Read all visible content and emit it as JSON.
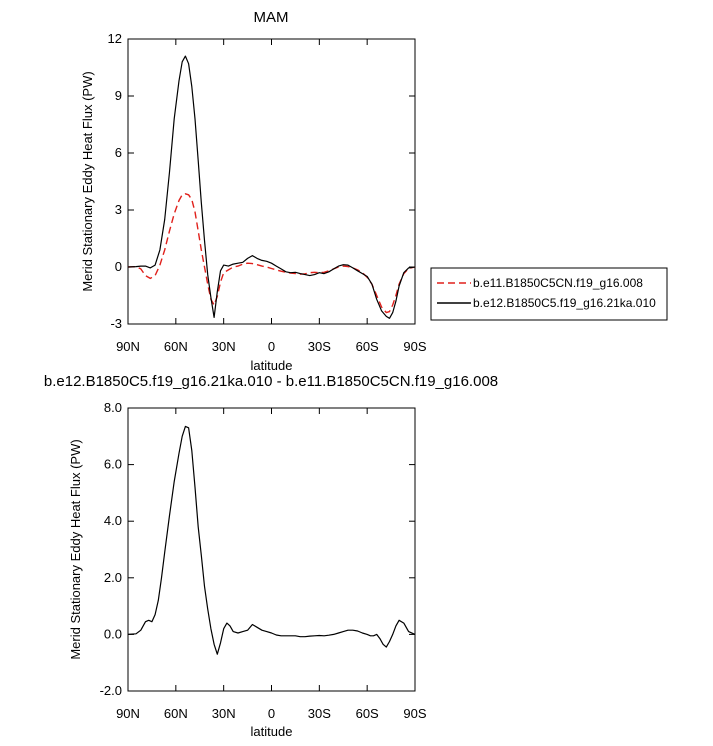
{
  "chart_data": [
    {
      "type": "line",
      "title": "MAM",
      "xlabel": "latitude",
      "ylabel": "Merid Stationary Eddy Heat Flux (PW)",
      "xlim": [
        90,
        -90
      ],
      "ylim": [
        -3,
        12
      ],
      "x_ticks": [
        90,
        60,
        30,
        0,
        -30,
        -60,
        -90
      ],
      "x_tick_labels": [
        "90N",
        "60N",
        "30N",
        "0",
        "30S",
        "60S",
        "90S"
      ],
      "y_ticks": [
        -3,
        0,
        3,
        6,
        9,
        12
      ],
      "y_tick_labels": [
        "-3",
        "0",
        "3",
        "6",
        "9",
        "12"
      ],
      "grid": false,
      "legend": "right",
      "series": [
        {
          "name": "b.e11.B1850C5CN.f19_g16.008",
          "color": "#e0201b",
          "dash": "dashed",
          "x": [
            90,
            85,
            82,
            79,
            76,
            73,
            70,
            67,
            64,
            61,
            58,
            56,
            54,
            52,
            50,
            48,
            46,
            44,
            42,
            40,
            38,
            36,
            34,
            32,
            30,
            27,
            24,
            21,
            18,
            15,
            12,
            9,
            6,
            3,
            0,
            -3,
            -6,
            -9,
            -12,
            -15,
            -18,
            -21,
            -24,
            -27,
            -30,
            -33,
            -36,
            -39,
            -42,
            -45,
            -48,
            -51,
            -54,
            -57,
            -60,
            -63,
            -66,
            -69,
            -72,
            -74,
            -76,
            -78,
            -80,
            -83,
            -86,
            -90
          ],
          "values": [
            0.0,
            0.02,
            -0.1,
            -0.45,
            -0.6,
            -0.45,
            0.1,
            0.9,
            1.9,
            2.8,
            3.5,
            3.8,
            3.85,
            3.8,
            3.55,
            2.9,
            1.9,
            0.9,
            0.0,
            -0.9,
            -1.7,
            -2.0,
            -1.55,
            -0.8,
            -0.3,
            -0.15,
            0.0,
            0.05,
            0.15,
            0.2,
            0.18,
            0.12,
            0.05,
            0.0,
            -0.08,
            -0.15,
            -0.22,
            -0.28,
            -0.32,
            -0.35,
            -0.38,
            -0.36,
            -0.3,
            -0.28,
            -0.3,
            -0.28,
            -0.2,
            -0.1,
            0.0,
            0.05,
            0.02,
            -0.05,
            -0.15,
            -0.3,
            -0.55,
            -0.9,
            -1.5,
            -2.1,
            -2.4,
            -2.35,
            -2.0,
            -1.5,
            -0.9,
            -0.35,
            -0.08,
            0.0
          ]
        },
        {
          "name": "b.e12.B1850C5.f19_g16.21ka.010",
          "color": "#000000",
          "dash": "solid",
          "x": [
            90,
            85,
            82,
            79,
            76,
            73,
            70,
            67,
            64,
            61,
            58,
            56,
            54,
            52,
            50,
            48,
            46,
            44,
            42,
            40,
            38,
            36,
            34,
            32,
            30,
            27,
            24,
            21,
            18,
            15,
            12,
            9,
            6,
            3,
            0,
            -3,
            -6,
            -9,
            -12,
            -15,
            -18,
            -21,
            -24,
            -27,
            -30,
            -33,
            -36,
            -39,
            -42,
            -45,
            -48,
            -51,
            -54,
            -57,
            -60,
            -63,
            -66,
            -69,
            -72,
            -74,
            -76,
            -78,
            -80,
            -83,
            -86,
            -90
          ],
          "values": [
            0.0,
            0.02,
            0.05,
            0.05,
            -0.05,
            0.1,
            0.9,
            2.5,
            5.0,
            7.8,
            9.8,
            10.8,
            11.1,
            10.7,
            9.5,
            7.8,
            5.6,
            3.4,
            1.4,
            -0.4,
            -1.6,
            -2.65,
            -1.3,
            -0.2,
            0.1,
            0.05,
            0.15,
            0.2,
            0.25,
            0.45,
            0.6,
            0.45,
            0.35,
            0.3,
            0.2,
            0.05,
            -0.1,
            -0.25,
            -0.3,
            -0.28,
            -0.35,
            -0.4,
            -0.45,
            -0.4,
            -0.3,
            -0.35,
            -0.25,
            -0.1,
            0.05,
            0.12,
            0.1,
            -0.05,
            -0.2,
            -0.35,
            -0.5,
            -0.9,
            -1.7,
            -2.3,
            -2.6,
            -2.7,
            -2.4,
            -1.8,
            -1.0,
            -0.3,
            -0.05,
            0.0
          ]
        }
      ]
    },
    {
      "type": "line",
      "title": "b.e12.B1850C5.f19_g16.21ka.010 - b.e11.B1850C5CN.f19_g16.008",
      "xlabel": "latitude",
      "ylabel": "Merid Stationary Eddy Heat Flux (PW)",
      "xlim": [
        90,
        -90
      ],
      "ylim": [
        -2,
        8
      ],
      "x_ticks": [
        90,
        60,
        30,
        0,
        -30,
        -60,
        -90
      ],
      "x_tick_labels": [
        "90N",
        "60N",
        "30N",
        "0",
        "30S",
        "60S",
        "90S"
      ],
      "y_ticks": [
        -2,
        0,
        2,
        4,
        6,
        8
      ],
      "y_tick_labels": [
        "-2.0",
        "0.0",
        "2.0",
        "4.0",
        "6.0",
        "8.0"
      ],
      "grid": false,
      "series": [
        {
          "color": "#000000",
          "dash": "solid",
          "x": [
            90,
            85,
            82,
            79,
            77,
            75,
            73,
            71,
            69,
            67,
            64,
            61,
            58,
            56,
            54,
            52,
            50,
            48,
            46,
            44,
            42,
            40,
            38,
            36,
            34,
            32,
            30,
            28,
            26,
            24,
            21,
            18,
            15,
            12,
            9,
            6,
            3,
            0,
            -3,
            -6,
            -9,
            -12,
            -15,
            -18,
            -21,
            -24,
            -27,
            -30,
            -33,
            -36,
            -39,
            -42,
            -45,
            -48,
            -51,
            -54,
            -57,
            -60,
            -62,
            -64,
            -66,
            -68,
            -70,
            -72,
            -74,
            -76,
            -78,
            -80,
            -83,
            -86,
            -90
          ],
          "values": [
            0.0,
            0.02,
            0.15,
            0.45,
            0.5,
            0.45,
            0.7,
            1.2,
            2.0,
            2.9,
            4.2,
            5.4,
            6.4,
            7.0,
            7.35,
            7.3,
            6.5,
            5.2,
            3.8,
            2.8,
            1.7,
            0.9,
            0.2,
            -0.35,
            -0.7,
            -0.3,
            0.2,
            0.4,
            0.3,
            0.1,
            0.05,
            0.1,
            0.15,
            0.35,
            0.25,
            0.15,
            0.1,
            0.05,
            -0.02,
            -0.05,
            -0.05,
            -0.05,
            -0.05,
            -0.08,
            -0.08,
            -0.06,
            -0.05,
            -0.04,
            -0.05,
            -0.03,
            0.0,
            0.05,
            0.1,
            0.15,
            0.15,
            0.12,
            0.05,
            0.0,
            -0.05,
            -0.05,
            0.0,
            -0.15,
            -0.35,
            -0.45,
            -0.25,
            0.0,
            0.3,
            0.5,
            0.4,
            0.1,
            0.0
          ]
        }
      ]
    }
  ]
}
